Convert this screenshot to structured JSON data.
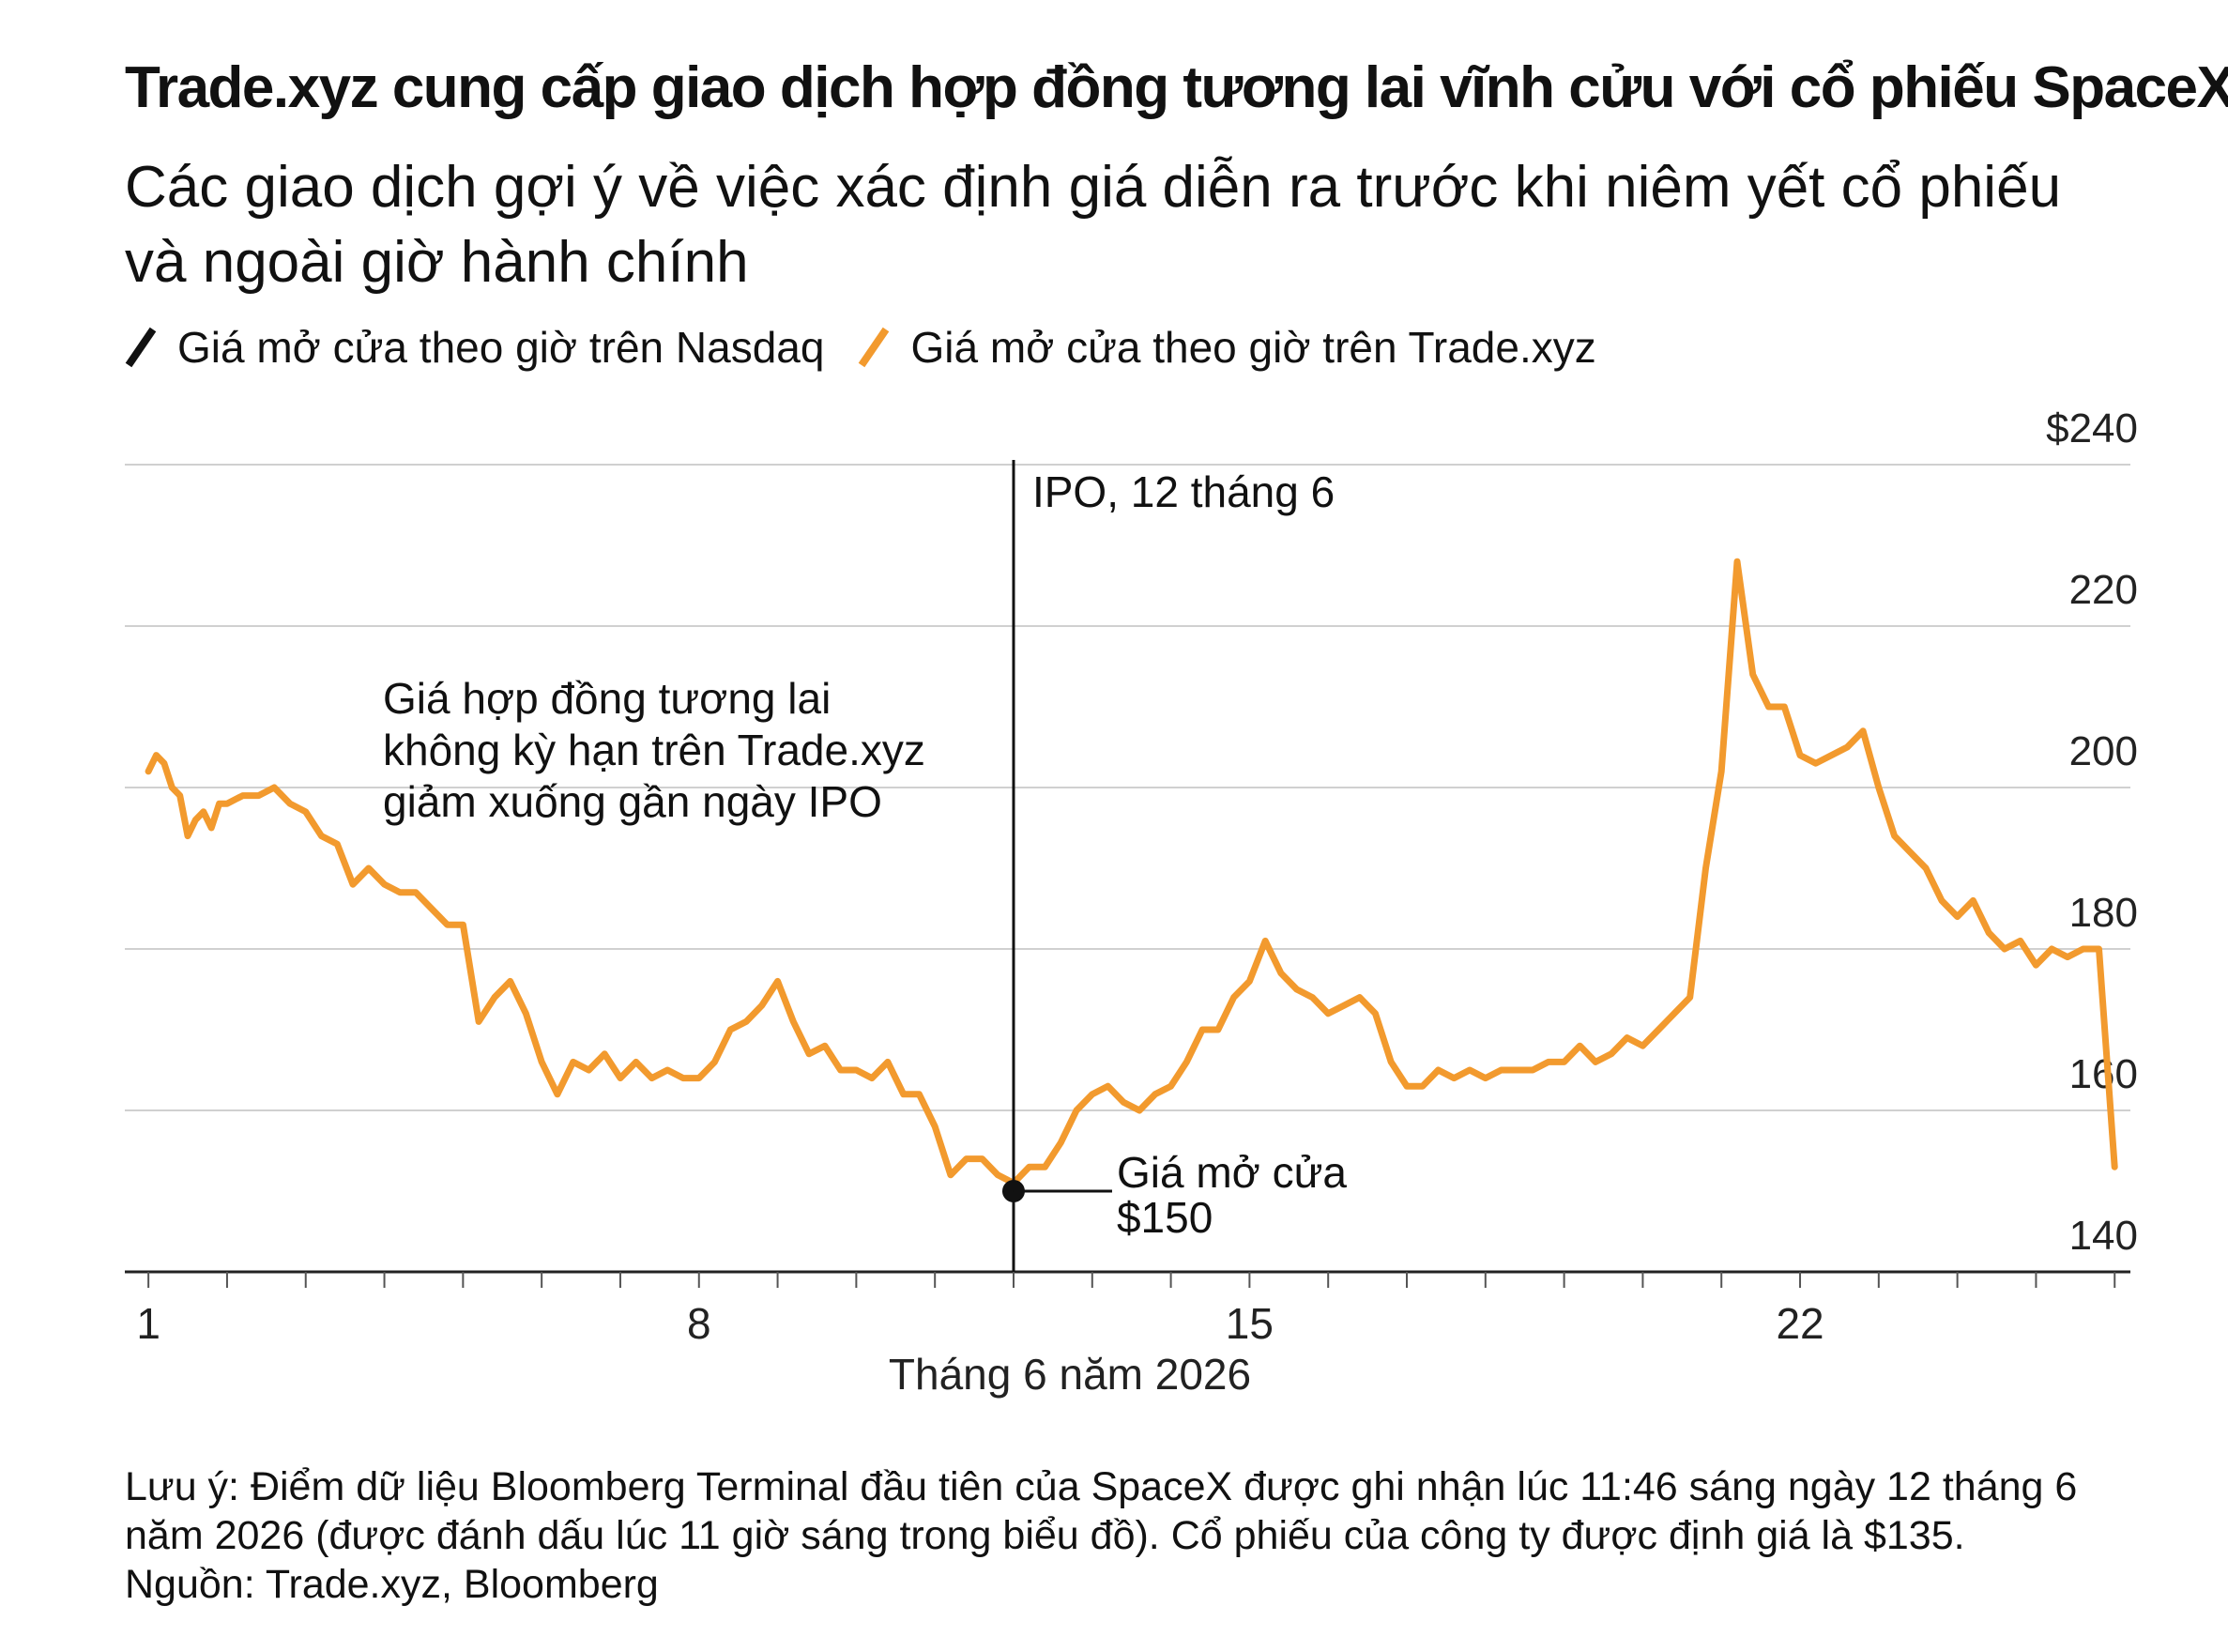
{
  "header": {
    "title": "Trade.xyz cung cấp giao dịch hợp đồng tương lai vĩnh cửu với cổ phiếu SpaceX",
    "subtitle_line1": "Các giao dịch gợi ý về việc xác định giá diễn ra trước khi niêm yết cổ phiếu",
    "subtitle_line2": "và ngoài giờ hành chính"
  },
  "legend": [
    {
      "label": "Giá mở cửa theo giờ trên Nasdaq",
      "color": "#111111"
    },
    {
      "label": "Giá mở cửa theo giờ trên Trade.xyz",
      "color": "#f29a2e"
    }
  ],
  "footer": {
    "note_line1": "Lưu ý: Điểm dữ liệu Bloomberg Terminal đầu tiên của SpaceX được ghi nhận lúc 11:46 sáng ngày 12 tháng 6",
    "note_line2": "năm 2026 (được đánh dấu lúc 11 giờ sáng trong biểu đồ). Cổ phiếu của công ty được định giá là $135.",
    "source": "Nguồn: Trade.xyz, Bloomberg"
  },
  "chart_data": {
    "type": "line",
    "xlabel": "Tháng 6 năm 2026",
    "xlim": [
      0.7,
      26.2
    ],
    "ylim": [
      140,
      240
    ],
    "y_gridlines": [
      160,
      180,
      200,
      220,
      240
    ],
    "y_tick_labels": [
      {
        "value": 240,
        "label": "$240"
      },
      {
        "value": 220,
        "label": "220"
      },
      {
        "value": 200,
        "label": "200"
      },
      {
        "value": 180,
        "label": "180"
      },
      {
        "value": 160,
        "label": "160"
      },
      {
        "value": 140,
        "label": "140"
      }
    ],
    "x_minor_ticks": [
      1,
      2,
      3,
      4,
      5,
      6,
      7,
      8,
      9,
      10,
      11,
      12,
      13,
      14,
      15,
      16,
      17,
      18,
      19,
      20,
      21,
      22,
      23,
      24,
      25,
      26
    ],
    "x_tick_labels": [
      {
        "value": 1,
        "label": "1"
      },
      {
        "value": 8,
        "label": "8"
      },
      {
        "value": 15,
        "label": "15"
      },
      {
        "value": 22,
        "label": "22"
      }
    ],
    "series": [
      {
        "name": "Giá mở cửa theo giờ trên Trade.xyz",
        "color": "#f29a2e",
        "points": [
          [
            1.0,
            202
          ],
          [
            1.1,
            204
          ],
          [
            1.2,
            203
          ],
          [
            1.3,
            200
          ],
          [
            1.4,
            199
          ],
          [
            1.5,
            194
          ],
          [
            1.6,
            196
          ],
          [
            1.7,
            197
          ],
          [
            1.8,
            195
          ],
          [
            1.9,
            198
          ],
          [
            2.0,
            198
          ],
          [
            2.2,
            199
          ],
          [
            2.4,
            199
          ],
          [
            2.6,
            200
          ],
          [
            2.8,
            198
          ],
          [
            3.0,
            197
          ],
          [
            3.2,
            194
          ],
          [
            3.4,
            193
          ],
          [
            3.6,
            188
          ],
          [
            3.8,
            190
          ],
          [
            4.0,
            188
          ],
          [
            4.2,
            187
          ],
          [
            4.4,
            187
          ],
          [
            4.6,
            185
          ],
          [
            4.8,
            183
          ],
          [
            5.0,
            183
          ],
          [
            5.2,
            171
          ],
          [
            5.4,
            174
          ],
          [
            5.6,
            176
          ],
          [
            5.8,
            172
          ],
          [
            6.0,
            166
          ],
          [
            6.2,
            162
          ],
          [
            6.4,
            166
          ],
          [
            6.6,
            165
          ],
          [
            6.8,
            167
          ],
          [
            7.0,
            164
          ],
          [
            7.2,
            166
          ],
          [
            7.4,
            164
          ],
          [
            7.6,
            165
          ],
          [
            7.8,
            164
          ],
          [
            8.0,
            164
          ],
          [
            8.2,
            166
          ],
          [
            8.4,
            170
          ],
          [
            8.6,
            171
          ],
          [
            8.8,
            173
          ],
          [
            9.0,
            176
          ],
          [
            9.2,
            171
          ],
          [
            9.4,
            167
          ],
          [
            9.6,
            168
          ],
          [
            9.8,
            165
          ],
          [
            10.0,
            165
          ],
          [
            10.2,
            164
          ],
          [
            10.4,
            166
          ],
          [
            10.6,
            162
          ],
          [
            10.8,
            162
          ],
          [
            11.0,
            158
          ],
          [
            11.2,
            152
          ],
          [
            11.4,
            154
          ],
          [
            11.6,
            154
          ],
          [
            11.8,
            152
          ],
          [
            12.0,
            151
          ],
          [
            12.2,
            153
          ],
          [
            12.4,
            153
          ],
          [
            12.6,
            156
          ],
          [
            12.8,
            160
          ],
          [
            13.0,
            162
          ],
          [
            13.2,
            163
          ],
          [
            13.4,
            161
          ],
          [
            13.6,
            160
          ],
          [
            13.8,
            162
          ],
          [
            14.0,
            163
          ],
          [
            14.2,
            166
          ],
          [
            14.4,
            170
          ],
          [
            14.6,
            170
          ],
          [
            14.8,
            174
          ],
          [
            15.0,
            176
          ],
          [
            15.2,
            181
          ],
          [
            15.4,
            177
          ],
          [
            15.6,
            175
          ],
          [
            15.8,
            174
          ],
          [
            16.0,
            172
          ],
          [
            16.2,
            173
          ],
          [
            16.4,
            174
          ],
          [
            16.6,
            172
          ],
          [
            16.8,
            166
          ],
          [
            17.0,
            163
          ],
          [
            17.2,
            163
          ],
          [
            17.4,
            165
          ],
          [
            17.6,
            164
          ],
          [
            17.8,
            165
          ],
          [
            18.0,
            164
          ],
          [
            18.2,
            165
          ],
          [
            18.4,
            165
          ],
          [
            18.6,
            165
          ],
          [
            18.8,
            166
          ],
          [
            19.0,
            166
          ],
          [
            19.2,
            168
          ],
          [
            19.4,
            166
          ],
          [
            19.6,
            167
          ],
          [
            19.8,
            169
          ],
          [
            20.0,
            168
          ],
          [
            20.2,
            170
          ],
          [
            20.4,
            172
          ],
          [
            20.6,
            174
          ],
          [
            20.8,
            190
          ],
          [
            21.0,
            202
          ],
          [
            21.2,
            228
          ],
          [
            21.4,
            214
          ],
          [
            21.6,
            210
          ],
          [
            21.8,
            210
          ],
          [
            22.0,
            204
          ],
          [
            22.2,
            203
          ],
          [
            22.4,
            204
          ],
          [
            22.6,
            205
          ],
          [
            22.8,
            207
          ],
          [
            23.0,
            200
          ],
          [
            23.2,
            194
          ],
          [
            23.4,
            192
          ],
          [
            23.6,
            190
          ],
          [
            23.8,
            186
          ],
          [
            24.0,
            184
          ],
          [
            24.2,
            186
          ],
          [
            24.4,
            182
          ],
          [
            24.6,
            180
          ],
          [
            24.8,
            181
          ],
          [
            25.0,
            178
          ],
          [
            25.2,
            180
          ],
          [
            25.4,
            179
          ],
          [
            25.6,
            180
          ],
          [
            25.8,
            180
          ],
          [
            26.0,
            153
          ]
        ]
      },
      {
        "name": "Giá mở cửa theo giờ trên Nasdaq",
        "color": "#111111",
        "points": []
      }
    ],
    "annotations": [
      {
        "type": "vline",
        "x": 12.0,
        "label": "IPO, 12 tháng 6"
      },
      {
        "type": "point",
        "x": 12.0,
        "y": 150,
        "label_line1": "Giá mở cửa",
        "label_line2": "$150"
      },
      {
        "type": "text",
        "x": 4.0,
        "y": 205,
        "lines": [
          "Giá hợp đồng tương lai",
          "không kỳ hạn trên Trade.xyz",
          "giảm xuống gần ngày IPO"
        ]
      }
    ]
  }
}
